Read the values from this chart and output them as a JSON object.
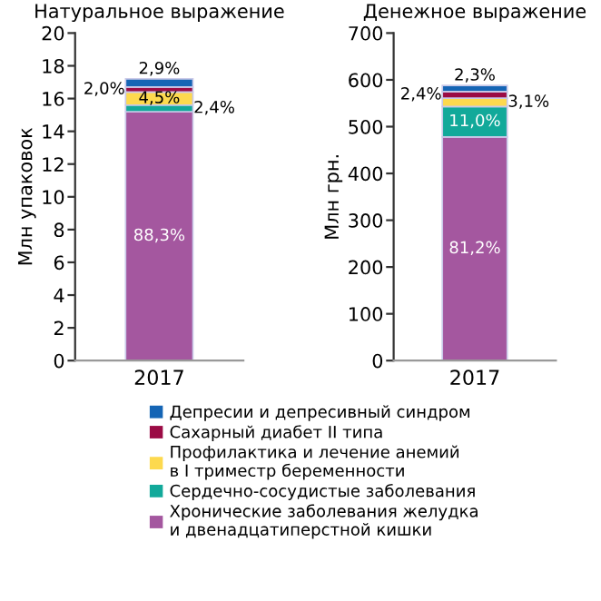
{
  "chart_data": [
    {
      "type": "bar",
      "title": "Натуральное выражение",
      "ylabel": "Млн упаковок",
      "categories": [
        "2017"
      ],
      "stacked": true,
      "ylim": [
        0,
        20
      ],
      "yticks": [
        0,
        2,
        4,
        6,
        8,
        10,
        12,
        14,
        16,
        18,
        20
      ],
      "grid": false,
      "legend": "bottom",
      "series": [
        {
          "name": "Хронические заболевания желудка\nи двенадцатиперстной кишки",
          "color": "#a4579f",
          "values": [
            15.2
          ]
        },
        {
          "name": "Сердечно-сосудистые заболевания",
          "color": "#12a99a",
          "values": [
            0.4
          ]
        },
        {
          "name": "Профилактика и лечение анемий\nв I триместр беременности",
          "color": "#fdd94e",
          "values": [
            0.8
          ]
        },
        {
          "name": "Сахарный диабет II типа",
          "color": "#9b0b45",
          "values": [
            0.3
          ]
        },
        {
          "name": "Депресии и депресивный синдром",
          "color": "#1565b5",
          "values": [
            0.5
          ]
        }
      ],
      "annotations": [
        "88,3%",
        {
          "text": "2,4%",
          "x": "2017",
          "y": 15.6
        },
        {
          "text": "4,5%",
          "x": "2017",
          "y": 16.4
        },
        {
          "text": "2,0%",
          "x": "2017",
          "y": 16.7
        },
        {
          "text": "2,9%",
          "x": "2017",
          "y": 17.2
        }
      ]
    },
    {
      "type": "bar",
      "title": "Денежное выражение",
      "ylabel": "Млн грн.",
      "categories": [
        "2017"
      ],
      "stacked": true,
      "ylim": [
        0,
        700
      ],
      "yticks": [
        0,
        100,
        200,
        300,
        400,
        500,
        600,
        700
      ],
      "grid": false,
      "series": [
        {
          "color": "#a4579f",
          "values": [
            478
          ]
        },
        {
          "color": "#12a99a",
          "values": [
            65
          ]
        },
        {
          "color": "#fdd94e",
          "values": [
            18
          ]
        },
        {
          "color": "#9b0b45",
          "values": [
            14
          ]
        },
        {
          "color": "#1565b5",
          "values": [
            13
          ]
        }
      ],
      "annotations": [
        "81,2%",
        {
          "text": "11,0%",
          "x": "2017",
          "y": 543
        },
        {
          "text": "3,1%",
          "x": "2017",
          "y": 561
        },
        {
          "text": "2,4%",
          "x": "2017",
          "y": 575
        },
        {
          "text": "2,3%",
          "x": "2017",
          "y": 588
        }
      ]
    }
  ]
}
